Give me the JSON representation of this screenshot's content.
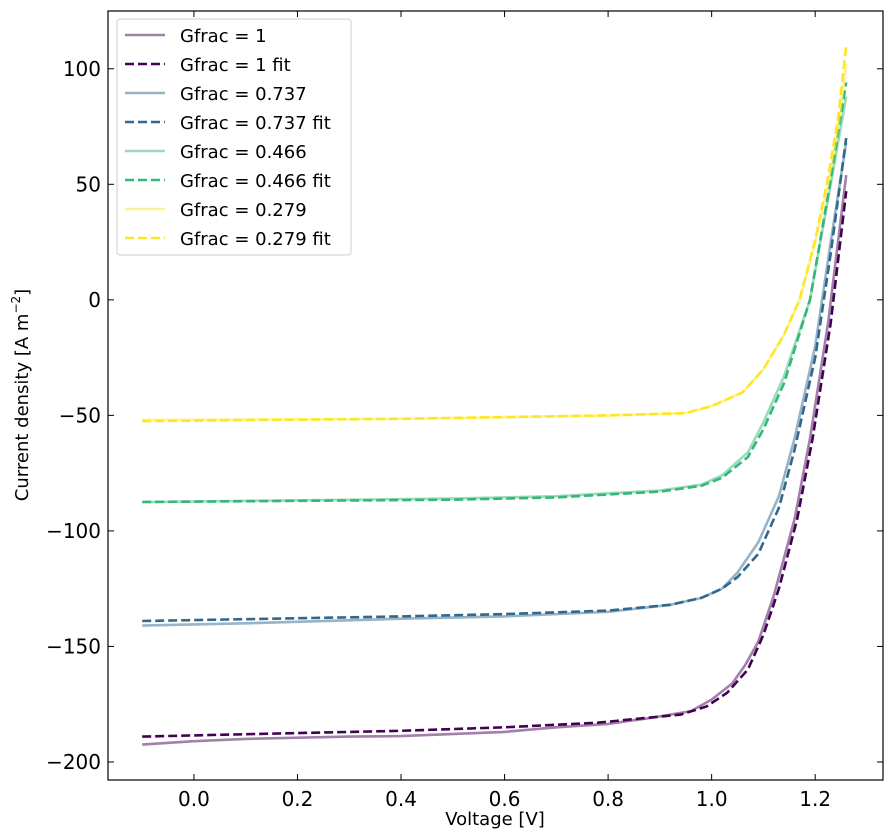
{
  "chart_data": {
    "type": "line",
    "xlabel": "Voltage [V]",
    "ylabel": "Current density [A m",
    "ylabel_sup": "−2",
    "ylabel_end": "]",
    "xlim": [
      -0.166,
      1.331
    ],
    "ylim": [
      -207.8,
      125
    ],
    "x_ticks": [
      0.0,
      0.2,
      0.4,
      0.6,
      0.8,
      1.0,
      1.2
    ],
    "x_tick_labels": [
      "0.0",
      "0.2",
      "0.4",
      "0.6",
      "0.8",
      "1.0",
      "1.2"
    ],
    "y_ticks": [
      100,
      50,
      0,
      -50,
      -100,
      -150,
      -200
    ],
    "y_tick_labels": [
      "100",
      "50",
      "0",
      "−50",
      "−100",
      "−150",
      "−200"
    ],
    "grid": false,
    "legend_position": "top-left",
    "series": [
      {
        "name": "Gfrac = 1",
        "color": "#440154",
        "style": "solid",
        "alpha": 0.5,
        "x": [
          -0.1,
          0,
          0.1,
          0.3,
          0.4,
          0.6,
          0.7,
          0.8,
          0.88,
          0.96,
          1.0,
          1.04,
          1.065,
          1.09,
          1.12,
          1.16,
          1.19,
          1.225,
          1.26
        ],
        "y": [
          -192.5,
          -191,
          -190,
          -189,
          -188.8,
          -187,
          -185,
          -183.5,
          -181,
          -178,
          -173,
          -166,
          -158,
          -148,
          -128,
          -95,
          -60,
          -10,
          54
        ]
      },
      {
        "name": "Gfrac = 1 fit",
        "color": "#440154",
        "style": "dashed",
        "alpha": 1,
        "x": [
          -0.1,
          0.1,
          0.4,
          0.6,
          0.78,
          0.87,
          0.94,
          0.99,
          1.03,
          1.07,
          1.1,
          1.13,
          1.165,
          1.195,
          1.23,
          1.26
        ],
        "y": [
          -189,
          -188,
          -186.5,
          -185,
          -183,
          -181,
          -179.5,
          -176,
          -170,
          -160,
          -145,
          -125,
          -95,
          -60,
          -10,
          47
        ]
      },
      {
        "name": "Gfrac = 0.737",
        "color": "#31688e",
        "style": "solid",
        "alpha": 0.5,
        "x": [
          -0.1,
          0.1,
          0.4,
          0.6,
          0.8,
          0.92,
          0.98,
          1.02,
          1.05,
          1.09,
          1.13,
          1.16,
          1.2,
          1.23,
          1.26
        ],
        "y": [
          -141,
          -140,
          -138,
          -137,
          -135,
          -132,
          -129,
          -125,
          -118,
          -105,
          -85,
          -60,
          -20,
          25,
          68
        ]
      },
      {
        "name": "Gfrac = 0.737 fit",
        "color": "#31688e",
        "style": "dashed",
        "alpha": 1,
        "x": [
          -0.1,
          0.4,
          0.6,
          0.8,
          0.92,
          0.98,
          1.02,
          1.05,
          1.09,
          1.13,
          1.16,
          1.2,
          1.23,
          1.26
        ],
        "y": [
          -139,
          -137,
          -136,
          -134.5,
          -132,
          -129,
          -125,
          -120,
          -110,
          -90,
          -65,
          -25,
          20,
          70
        ]
      },
      {
        "name": "Gfrac = 0.466",
        "color": "#35b779",
        "style": "solid",
        "alpha": 0.5,
        "x": [
          -0.1,
          0.5,
          0.7,
          0.9,
          0.98,
          1.02,
          1.07,
          1.1,
          1.14,
          1.19,
          1.23,
          1.26
        ],
        "y": [
          -87.5,
          -86,
          -85,
          -82.5,
          -80,
          -76,
          -66,
          -53,
          -33,
          0,
          50,
          88
        ]
      },
      {
        "name": "Gfrac = 0.466 fit",
        "color": "#35b779",
        "style": "dashed",
        "alpha": 1,
        "x": [
          -0.1,
          0.5,
          0.7,
          0.9,
          0.98,
          1.02,
          1.07,
          1.1,
          1.14,
          1.19,
          1.23,
          1.26
        ],
        "y": [
          -87.5,
          -86.5,
          -85.5,
          -83,
          -80.5,
          -77,
          -68,
          -56,
          -36,
          0,
          52,
          94
        ]
      },
      {
        "name": "Gfrac = 0.279",
        "color": "#fde725",
        "style": "solid",
        "alpha": 0.5,
        "x": [
          -0.1,
          0.4,
          0.8,
          0.95,
          1.0,
          1.06,
          1.1,
          1.14,
          1.17,
          1.2,
          1.225,
          1.245,
          1.26
        ],
        "y": [
          -52,
          -51.5,
          -50,
          -49,
          -46,
          -40,
          -30,
          -15,
          0,
          25,
          50,
          75,
          102
        ]
      },
      {
        "name": "Gfrac = 0.279 fit",
        "color": "#fde725",
        "style": "dashed",
        "alpha": 1,
        "x": [
          -0.1,
          0.4,
          0.8,
          0.95,
          1.0,
          1.06,
          1.1,
          1.14,
          1.17,
          1.2,
          1.225,
          1.245,
          1.26
        ],
        "y": [
          -52.5,
          -51.5,
          -50,
          -49,
          -46,
          -40,
          -30,
          -15,
          0,
          26,
          53,
          80,
          110
        ]
      }
    ]
  }
}
